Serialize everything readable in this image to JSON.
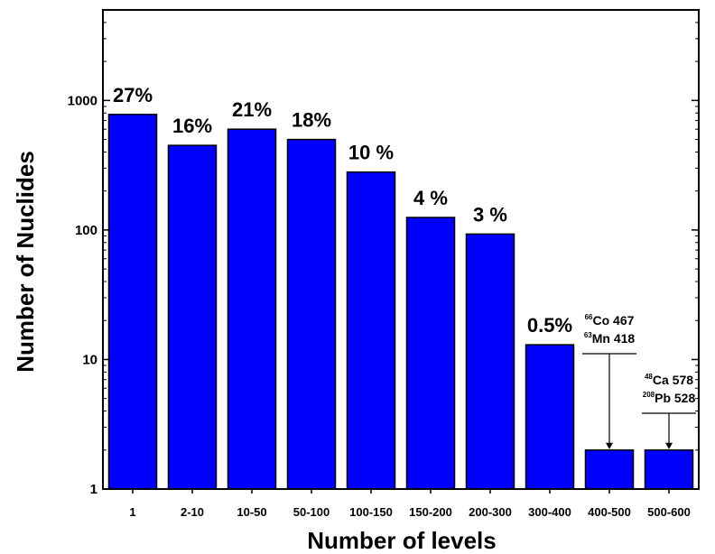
{
  "chart_data": {
    "type": "bar",
    "title": "",
    "xlabel": "Number of levels",
    "ylabel": "Number of Nuclides",
    "yscale": "log",
    "ylim": [
      1,
      5000
    ],
    "grid": false,
    "legend": "none",
    "bar_color": "#0000ff",
    "categories": [
      "1",
      "2-10",
      "10-50",
      "50-100",
      "100-150",
      "150-200",
      "200-300",
      "300-400",
      "400-500",
      "500-600"
    ],
    "values": [
      780,
      450,
      600,
      500,
      280,
      125,
      93,
      13,
      2,
      2
    ],
    "data_labels": [
      "27%",
      "16%",
      "21%",
      "18%",
      "10 %",
      "4 %",
      "3 %",
      "0.5%",
      "",
      ""
    ],
    "yticks": [
      {
        "value": 1,
        "label": "1"
      },
      {
        "value": 10,
        "label": "10"
      },
      {
        "value": 100,
        "label": "100"
      },
      {
        "value": 1000,
        "label": "1000"
      }
    ],
    "annotations": [
      {
        "category": "400-500",
        "lines": [
          {
            "sup": "66",
            "text": "Co 467"
          },
          {
            "sup": "63",
            "text": "Mn 418"
          }
        ]
      },
      {
        "category": "500-600",
        "lines": [
          {
            "sup": "48",
            "text": "Ca 578"
          },
          {
            "sup": "208",
            "text": "Pb 528"
          }
        ]
      }
    ]
  }
}
